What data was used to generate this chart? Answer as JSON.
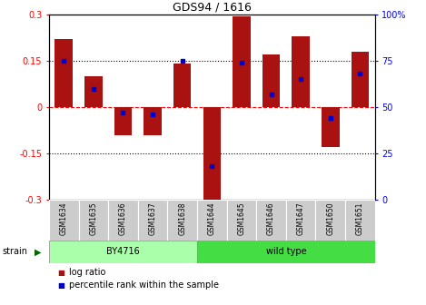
{
  "title": "GDS94 / 1616",
  "samples": [
    "GSM1634",
    "GSM1635",
    "GSM1636",
    "GSM1637",
    "GSM1638",
    "GSM1644",
    "GSM1645",
    "GSM1646",
    "GSM1647",
    "GSM1650",
    "GSM1651"
  ],
  "log_ratio": [
    0.22,
    0.1,
    -0.09,
    -0.09,
    0.14,
    -0.3,
    0.295,
    0.17,
    0.23,
    -0.13,
    0.18
  ],
  "percentile": [
    75,
    60,
    47,
    46,
    75,
    18,
    74,
    57,
    65,
    44,
    68
  ],
  "strain_groups": [
    {
      "label": "BY4716",
      "start": 0,
      "end": 5,
      "color": "#AAFFAA"
    },
    {
      "label": "wild type",
      "start": 5,
      "end": 11,
      "color": "#44DD44"
    }
  ],
  "bar_color": "#AA1111",
  "percentile_color": "#0000CC",
  "ylim_left": [
    -0.3,
    0.3
  ],
  "ylim_right": [
    0,
    100
  ],
  "yticks_left": [
    -0.3,
    -0.15,
    0,
    0.15,
    0.3
  ],
  "yticks_right": [
    0,
    25,
    50,
    75,
    100
  ],
  "ytick_labels_left": [
    "-0.3",
    "-0.15",
    "0",
    "0.15",
    "0.3"
  ],
  "ytick_labels_right": [
    "0",
    "25",
    "50",
    "75",
    "100%"
  ],
  "background_color": "#FFFFFF",
  "strain_label": "strain",
  "arrow_color": "#006400",
  "legend_items": [
    {
      "label": "log ratio",
      "color": "#AA1111"
    },
    {
      "label": "percentile rank within the sample",
      "color": "#0000CC"
    }
  ]
}
